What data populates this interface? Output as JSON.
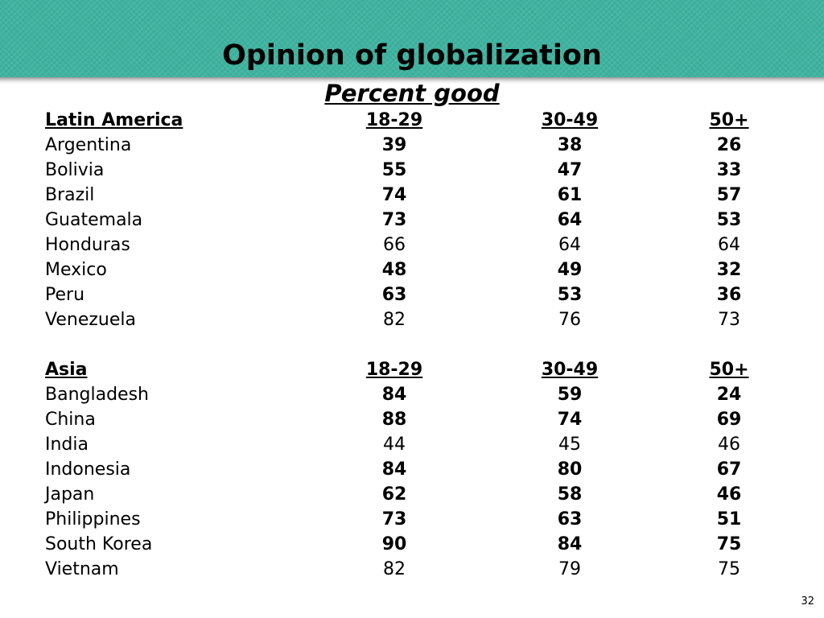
{
  "slide": {
    "title": "Opinion of globalization",
    "subtitle": "Percent good",
    "page_number": "32"
  },
  "sections": [
    {
      "header": {
        "label": "Latin America",
        "cols": [
          "18-29",
          "30-49",
          "50+"
        ]
      },
      "rows": [
        {
          "name": "Argentina",
          "values": [
            "39",
            "38",
            "26"
          ],
          "bold": true
        },
        {
          "name": "Bolivia",
          "values": [
            "55",
            "47",
            "33"
          ],
          "bold": true
        },
        {
          "name": "Brazil",
          "values": [
            "74",
            "61",
            "57"
          ],
          "bold": true
        },
        {
          "name": "Guatemala",
          "values": [
            "73",
            "64",
            "53"
          ],
          "bold": true
        },
        {
          "name": "Honduras",
          "values": [
            "66",
            "64",
            "64"
          ],
          "bold": false
        },
        {
          "name": "Mexico",
          "values": [
            "48",
            "49",
            "32"
          ],
          "bold": true
        },
        {
          "name": "Peru",
          "values": [
            "63",
            "53",
            "36"
          ],
          "bold": true
        },
        {
          "name": "Venezuela",
          "values": [
            "82",
            "76",
            "73"
          ],
          "bold": false
        }
      ]
    },
    {
      "header": {
        "label": "Asia",
        "cols": [
          "18-29",
          "30-49",
          "50+"
        ]
      },
      "rows": [
        {
          "name": "Bangladesh",
          "values": [
            "84",
            "59",
            "24"
          ],
          "bold": true
        },
        {
          "name": "China",
          "values": [
            "88",
            "74",
            "69"
          ],
          "bold": true
        },
        {
          "name": "India",
          "values": [
            "44",
            "45",
            "46"
          ],
          "bold": false
        },
        {
          "name": "Indonesia",
          "values": [
            "84",
            "80",
            "67"
          ],
          "bold": true
        },
        {
          "name": "Japan",
          "values": [
            "62",
            "58",
            "46"
          ],
          "bold": true
        },
        {
          "name": "Philippines",
          "values": [
            "73",
            "63",
            "51"
          ],
          "bold": true
        },
        {
          "name": "South Korea",
          "values": [
            "90",
            "84",
            "75"
          ],
          "bold": true
        },
        {
          "name": "Vietnam",
          "values": [
            "82",
            "79",
            "75"
          ],
          "bold": false
        }
      ]
    }
  ]
}
